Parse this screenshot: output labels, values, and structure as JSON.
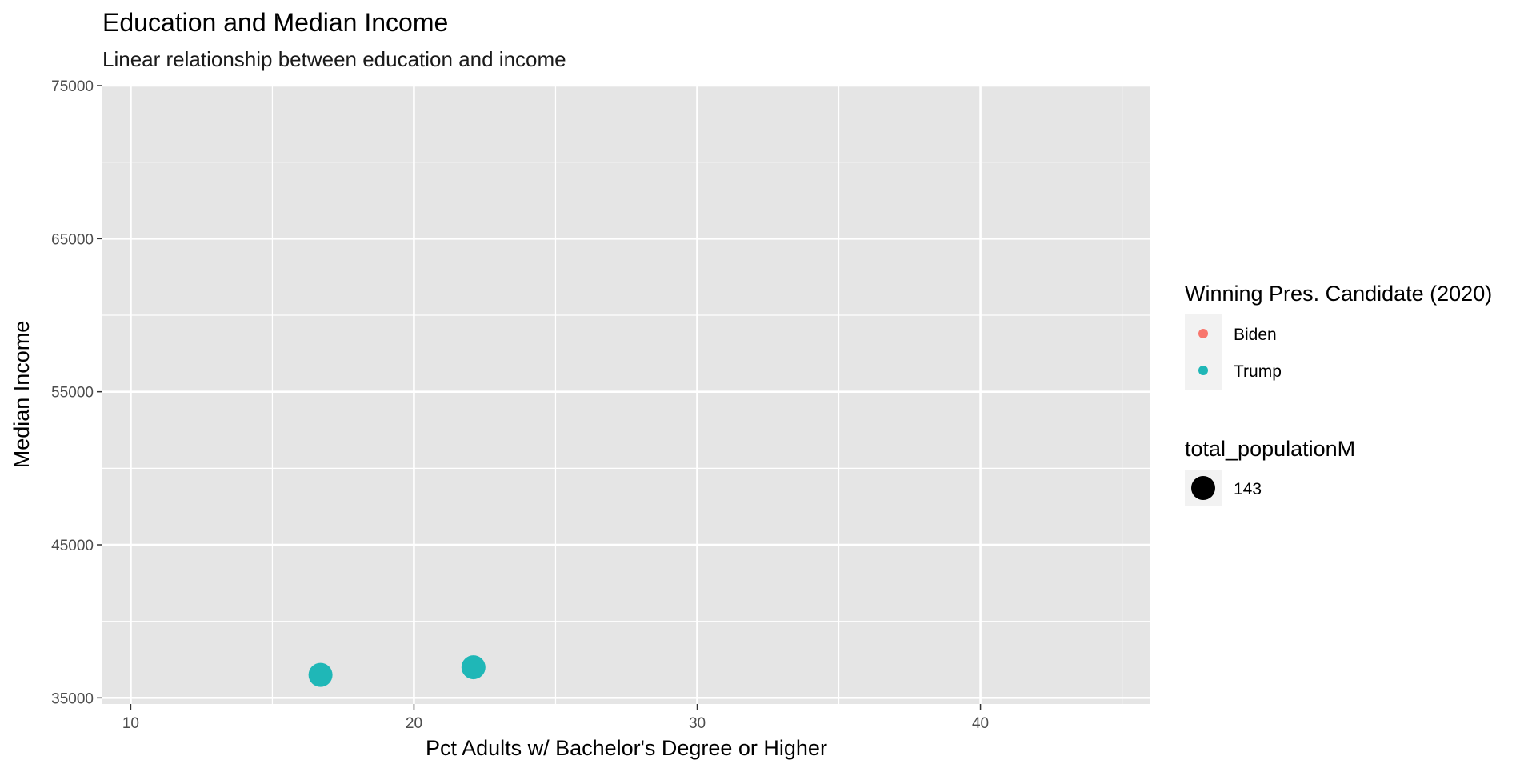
{
  "chart_data": {
    "type": "scatter",
    "title": "Education and Median Income",
    "subtitle": "Linear relationship between education and income",
    "xlabel": "Pct Adults w/ Bachelor's Degree or Higher",
    "ylabel": "Median Income",
    "xlim": [
      9,
      46
    ],
    "ylim": [
      34600,
      75000
    ],
    "x_ticks": [
      10,
      20,
      30,
      40
    ],
    "x_minor_ticks": [
      15,
      25,
      35,
      45
    ],
    "y_ticks": [
      35000,
      45000,
      55000,
      65000,
      75000
    ],
    "y_minor_ticks": [
      40000,
      50000,
      60000,
      70000
    ],
    "grid": true,
    "legend_position": "right",
    "colors": {
      "panel_bg": "#e5e5e5",
      "grid": "#ffffff",
      "Biden": "#f8766d",
      "Trump": "#1fb7b7",
      "size_key": "#000000"
    },
    "color_legend": {
      "title": "Winning Pres. Candidate (2020)",
      "items": [
        "Biden",
        "Trump"
      ]
    },
    "size_legend": {
      "title": "total_populationM",
      "items": [
        "143"
      ]
    },
    "points": [
      {
        "x": 16.7,
        "y": 36500,
        "group": "Trump",
        "size": 143
      },
      {
        "x": 22.1,
        "y": 37000,
        "group": "Trump",
        "size": 143
      }
    ]
  }
}
